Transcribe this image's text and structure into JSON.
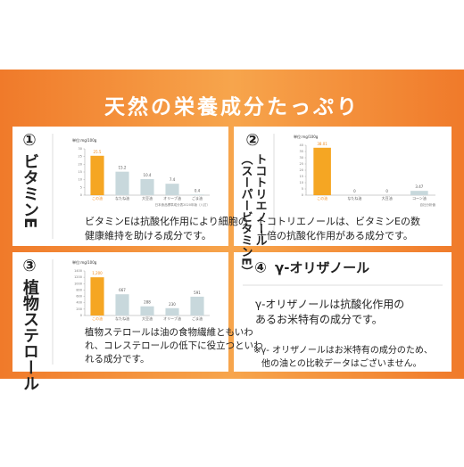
{
  "title": "天然の栄養成分たっぷり",
  "cards": [
    {
      "number": "①",
      "label": [
        "ビタミンE"
      ],
      "chart": {
        "type": "bar",
        "unit": "単位:mg/100g",
        "source": "日本食品標準成分表2020年版（八訂）",
        "categories": [
          "この油",
          "なたね油",
          "大豆油",
          "オリーブ油",
          "ごま油"
        ],
        "values": [
          25.5,
          15.2,
          10.4,
          7.4,
          0.4
        ],
        "colors": [
          "#f5a623",
          "#c8d8dc",
          "#c8d8dc",
          "#c8d8dc",
          "#c8d8dc"
        ],
        "ylim": [
          0,
          30
        ],
        "yticks": [
          0,
          5,
          10,
          15,
          20,
          25,
          30
        ]
      },
      "text": [
        "ビタミンEは抗酸化作用により細胞の",
        "健康維持を助ける成分です。"
      ]
    },
    {
      "number": "②",
      "label": [
        "トコトリエノール",
        "（スーパービタミンE）"
      ],
      "chart": {
        "type": "bar",
        "unit": "単位:mg/100g",
        "source": "自社分析値",
        "categories": [
          "この油",
          "なたね油",
          "大豆油",
          "コーン油"
        ],
        "values": [
          38.01,
          0,
          0,
          3.47
        ],
        "colors": [
          "#f5a623",
          "#c8d8dc",
          "#c8d8dc",
          "#c8d8dc"
        ],
        "ylim": [
          0,
          40
        ],
        "yticks": [
          0,
          5,
          10,
          15,
          20,
          25,
          30,
          35,
          40
        ]
      },
      "text": [
        "トコトリエノールは、ビタミンEの数",
        "十倍の抗酸化作用がある成分です。"
      ]
    },
    {
      "number": "③",
      "label": [
        "植物ステロール"
      ],
      "chart": {
        "type": "bar",
        "unit": "単位:mg/100g",
        "categories": [
          "この油",
          "なたね油",
          "大豆油",
          "オリーブ油",
          "ごま油"
        ],
        "values": [
          1200,
          667,
          288,
          230,
          591
        ],
        "value_labels": [
          "1,200",
          "667",
          "288",
          "230",
          "591"
        ],
        "colors": [
          "#f5a623",
          "#c8d8dc",
          "#c8d8dc",
          "#c8d8dc",
          "#c8d8dc"
        ],
        "ylim": [
          0,
          1400
        ],
        "yticks": [
          0,
          200,
          400,
          600,
          800,
          1000,
          1200,
          1400
        ]
      },
      "text": [
        "植物ステロールは油の食物繊維ともいわ",
        "れ、コレステロールの低下に役立つといわ",
        "れる成分です。"
      ]
    },
    {
      "number": "④",
      "label": [
        "γ-オリザノール"
      ],
      "text": [
        "γ-オリザノールは抗酸化作用の",
        "あるお米特有の成分です。"
      ],
      "note": [
        "※γ- オリザノールはお米特有の成分のため、",
        "他の油との比較データはございません。"
      ]
    }
  ]
}
